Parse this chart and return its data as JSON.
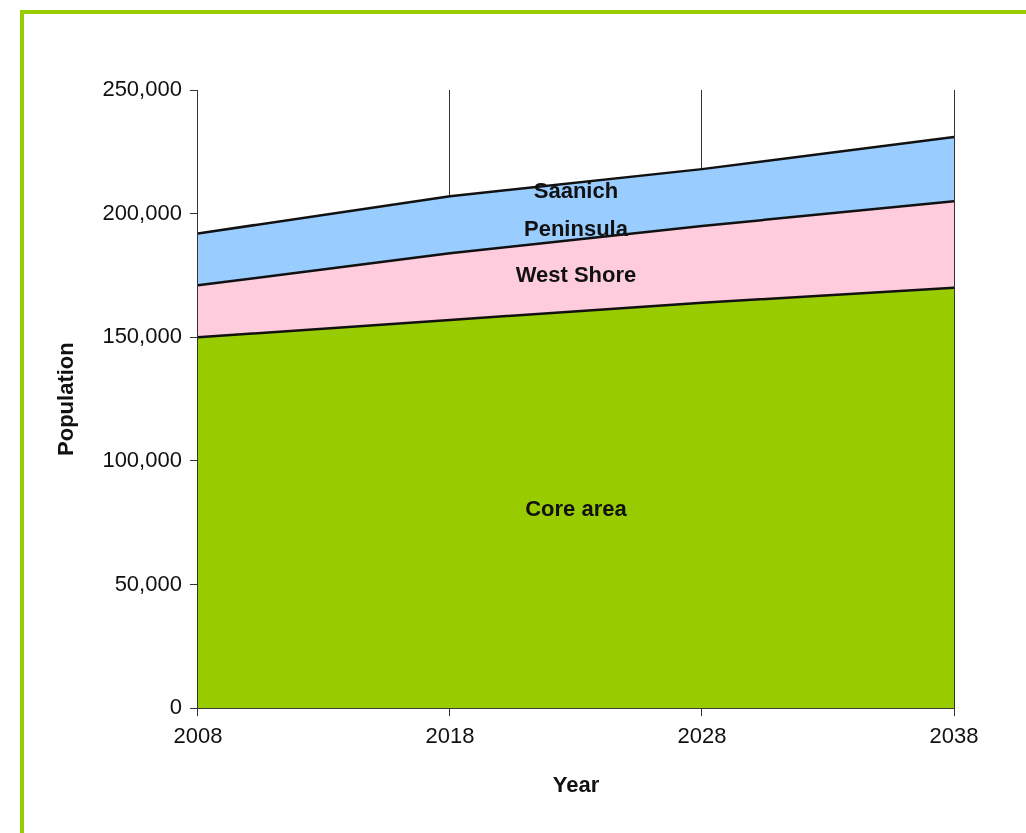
{
  "chart_data": {
    "type": "area",
    "xlabel": "Year",
    "ylabel": "Population",
    "stacked": true,
    "x": [
      2008,
      2018,
      2028,
      2038
    ],
    "series": [
      {
        "name": "Core area",
        "color": "#99cc00",
        "values": [
          150000,
          157000,
          164000,
          170000
        ]
      },
      {
        "name": "West Shore",
        "color": "#ffccdd",
        "values": [
          21000,
          27000,
          31000,
          35000
        ]
      },
      {
        "name": "Saanich Peninsula",
        "color": "#99ccff",
        "values": [
          21000,
          23000,
          23000,
          26000
        ]
      }
    ],
    "xlim": [
      2008,
      2038
    ],
    "xticks": [
      2008,
      2018,
      2028,
      2038
    ],
    "ylim": [
      0,
      250000
    ],
    "yticks": [
      0,
      {
        "value": 50000,
        "label": "50,000"
      },
      {
        "value": 100000,
        "label": "100,000"
      },
      {
        "value": 150000,
        "label": "150,000"
      },
      {
        "value": 200000,
        "label": "200,000"
      },
      {
        "value": 250000,
        "label": "250,000"
      }
    ],
    "grid": "x",
    "legend": false,
    "marker": "none",
    "line_style": "solid"
  }
}
